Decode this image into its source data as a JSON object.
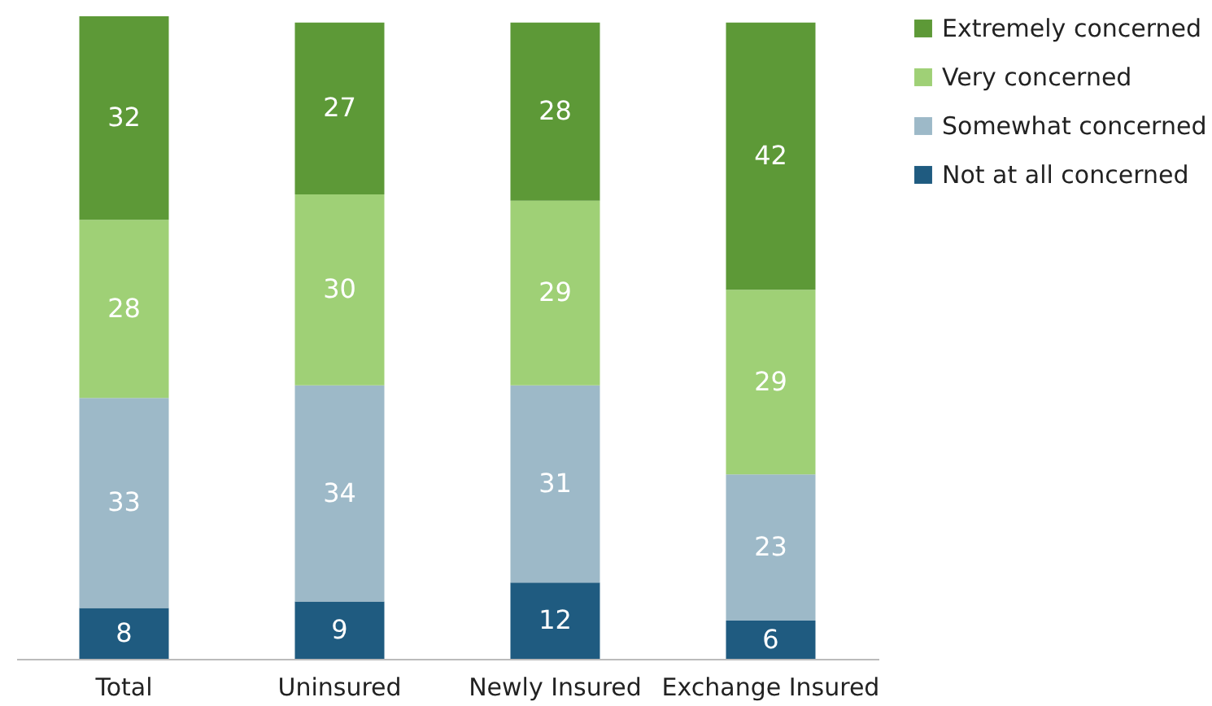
{
  "chart_data": {
    "type": "bar",
    "stacked": true,
    "data_labels": true,
    "legend": "right",
    "categories": [
      "Total",
      "Uninsured",
      "Newly Insured",
      "Exchange Insured"
    ],
    "series": [
      {
        "name": "Not at all concerned",
        "color": "#1f5b80",
        "values": [
          8,
          9,
          12,
          6
        ]
      },
      {
        "name": "Somewhat concerned",
        "color": "#9db9c8",
        "values": [
          33,
          34,
          31,
          23
        ]
      },
      {
        "name": "Very concerned",
        "color": "#9fd076",
        "values": [
          28,
          30,
          29,
          29
        ]
      },
      {
        "name": "Extremely concerned",
        "color": "#5d9937",
        "values": [
          32,
          27,
          28,
          42
        ]
      }
    ]
  }
}
